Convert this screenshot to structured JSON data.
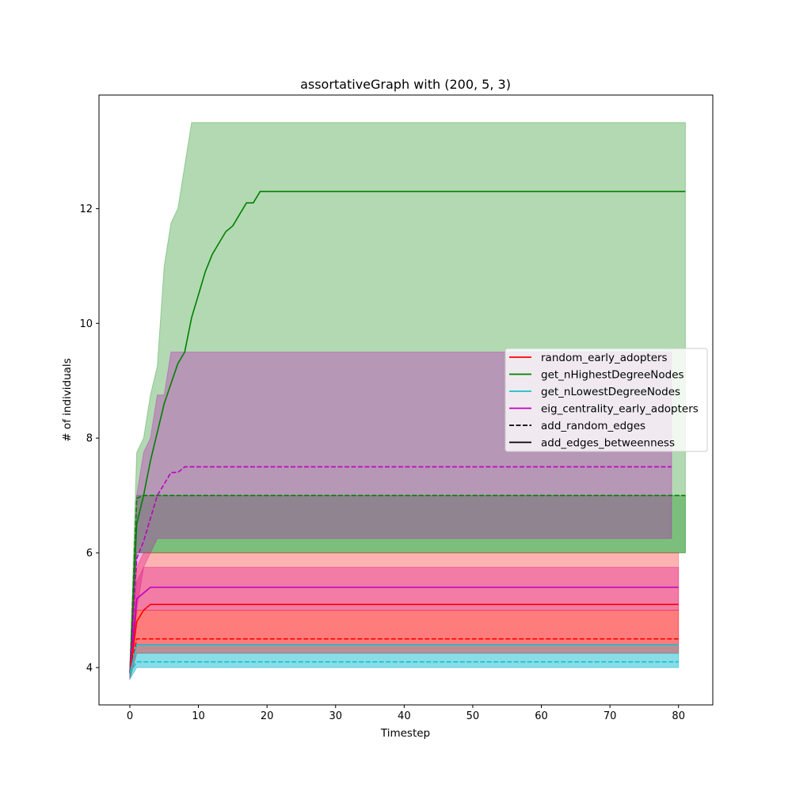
{
  "chart_data": {
    "type": "line",
    "title": "assortativeGraph with (200, 5, 3)",
    "xlabel": "Timestep",
    "ylabel": "# of individuals",
    "xlim": [
      -4.5,
      85
    ],
    "ylim": [
      3.35,
      13.98
    ],
    "xticks": [
      0,
      10,
      20,
      30,
      40,
      50,
      60,
      70,
      80
    ],
    "yticks": [
      4,
      6,
      8,
      10,
      12
    ],
    "grid": false,
    "legend_position": "center-right",
    "legend": [
      {
        "label": "random_early_adopters",
        "color": "#ff0000",
        "dash": "solid"
      },
      {
        "label": "get_nHighestDegreeNodes",
        "color": "#008000",
        "dash": "solid"
      },
      {
        "label": "get_nLowestDegreeNodes",
        "color": "#17becf",
        "dash": "solid"
      },
      {
        "label": "eig_centrality_early_adopters",
        "color": "#bf00bf",
        "dash": "solid"
      },
      {
        "label": "add_random_edges",
        "color": "#000000",
        "dash": "dashed"
      },
      {
        "label": "add_edges_betweenness",
        "color": "#000000",
        "dash": "solid"
      }
    ],
    "series": [
      {
        "id": "green-solid",
        "color": "#008000",
        "dash": "solid",
        "x": [
          0,
          1,
          2,
          3,
          4,
          5,
          6,
          7,
          8,
          9,
          10,
          11,
          12,
          13,
          14,
          15,
          16,
          17,
          18,
          19,
          81
        ],
        "y": [
          3.9,
          6.5,
          7.0,
          7.6,
          8.1,
          8.6,
          8.95,
          9.3,
          9.5,
          10.1,
          10.5,
          10.9,
          11.2,
          11.4,
          11.6,
          11.7,
          11.9,
          12.1,
          12.1,
          12.3,
          12.3
        ],
        "lower": [
          3.8,
          6.0,
          6.0,
          6.0,
          6.0,
          6.0,
          6.0,
          6.0,
          6.0,
          6.0,
          6.0,
          6.0,
          6.0,
          6.0,
          6.0,
          6.0,
          6.0,
          6.0,
          6.0,
          6.0,
          6.0
        ],
        "upper": [
          4.0,
          7.75,
          8.0,
          8.75,
          9.25,
          11.0,
          11.75,
          12.0,
          12.75,
          13.5,
          13.5,
          13.5,
          13.5,
          13.5,
          13.5,
          13.5,
          13.5,
          13.5,
          13.5,
          13.5,
          13.5
        ]
      },
      {
        "id": "green-dashed",
        "color": "#008000",
        "dash": "dashed",
        "x": [
          0,
          1,
          2,
          81
        ],
        "y": [
          3.9,
          6.95,
          7.0,
          7.0
        ],
        "lower": [
          3.8,
          6.0,
          6.0,
          6.0
        ],
        "upper": [
          4.0,
          7.0,
          7.0,
          7.0
        ]
      },
      {
        "id": "magenta-dashed",
        "color": "#bf00bf",
        "dash": "dashed",
        "x": [
          0,
          1,
          2,
          3,
          4,
          5,
          6,
          7,
          8,
          9,
          79
        ],
        "y": [
          3.9,
          5.9,
          6.2,
          6.6,
          7.0,
          7.2,
          7.4,
          7.4,
          7.5,
          7.5,
          7.5
        ],
        "lower": [
          3.8,
          5.0,
          5.75,
          6.0,
          6.25,
          6.25,
          6.25,
          6.25,
          6.25,
          6.25,
          6.25
        ],
        "upper": [
          4.0,
          7.0,
          7.75,
          8.0,
          8.75,
          8.75,
          9.5,
          9.5,
          9.5,
          9.5,
          9.5
        ]
      },
      {
        "id": "magenta-solid",
        "color": "#bf00bf",
        "dash": "solid",
        "x": [
          0,
          1,
          2,
          3,
          80
        ],
        "y": [
          3.9,
          5.2,
          5.3,
          5.4,
          5.4
        ],
        "lower": [
          3.8,
          5.0,
          5.0,
          5.0,
          5.0
        ],
        "upper": [
          4.0,
          5.5,
          5.75,
          5.75,
          5.75
        ]
      },
      {
        "id": "red-solid",
        "color": "#ff0000",
        "dash": "solid",
        "x": [
          0,
          1,
          2,
          3,
          80
        ],
        "y": [
          3.9,
          4.8,
          5.0,
          5.1,
          5.1
        ],
        "lower": [
          3.8,
          4.25,
          4.25,
          4.25,
          4.25
        ],
        "upper": [
          4.0,
          5.75,
          6.0,
          6.0,
          6.0
        ]
      },
      {
        "id": "red-dashed",
        "color": "#ff0000",
        "dash": "dashed",
        "x": [
          0,
          1,
          80
        ],
        "y": [
          3.9,
          4.5,
          4.5
        ],
        "lower": [
          3.8,
          4.25,
          4.25
        ],
        "upper": [
          4.0,
          5.0,
          5.0
        ]
      },
      {
        "id": "cyan-solid",
        "color": "#17becf",
        "dash": "solid",
        "x": [
          0,
          1,
          80
        ],
        "y": [
          3.9,
          4.4,
          4.4
        ],
        "lower": [
          3.8,
          4.0,
          4.0
        ],
        "upper": [
          4.0,
          4.4,
          4.4
        ]
      },
      {
        "id": "cyan-dashed",
        "color": "#17becf",
        "dash": "dashed",
        "x": [
          0,
          1,
          80
        ],
        "y": [
          3.9,
          4.1,
          4.1
        ],
        "lower": [
          3.8,
          4.0,
          4.0
        ],
        "upper": [
          4.0,
          4.25,
          4.25
        ]
      }
    ]
  }
}
